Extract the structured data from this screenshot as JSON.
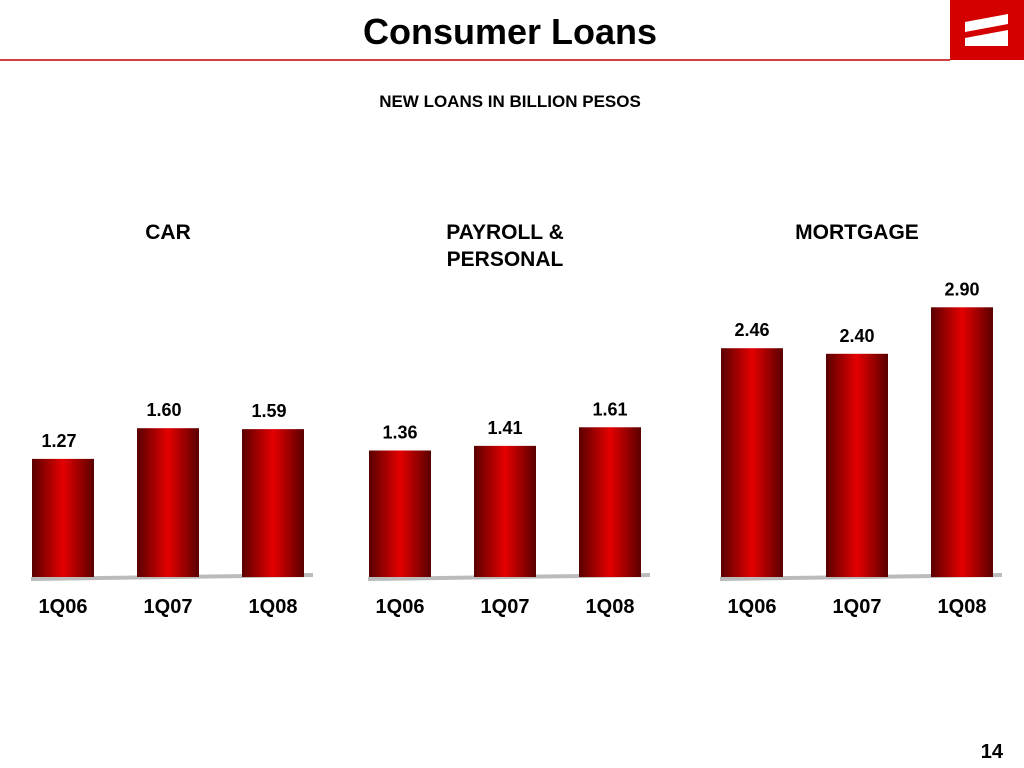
{
  "slide": {
    "title": "Consumer Loans",
    "subtitle": "NEW LOANS IN BILLION PESOS",
    "page": "14"
  },
  "chart_data": [
    {
      "type": "bar",
      "title": "CAR",
      "categories": [
        "1Q06",
        "1Q07",
        "1Q08"
      ],
      "values": [
        1.27,
        1.6,
        1.59
      ],
      "value_labels": [
        "1.27",
        "1.60",
        "1.59"
      ],
      "color": "#d00000"
    },
    {
      "type": "bar",
      "title": "PAYROLL & PERSONAL",
      "categories": [
        "1Q06",
        "1Q07",
        "1Q08"
      ],
      "values": [
        1.36,
        1.41,
        1.61
      ],
      "value_labels": [
        "1.36",
        "1.41",
        "1.61"
      ],
      "color": "#d00000"
    },
    {
      "type": "bar",
      "title": "MORTGAGE",
      "categories": [
        "1Q06",
        "1Q07",
        "1Q08"
      ],
      "values": [
        2.46,
        2.4,
        2.9
      ],
      "value_labels": [
        "2.46",
        "2.40",
        "2.90"
      ],
      "color": "#d00000"
    }
  ]
}
